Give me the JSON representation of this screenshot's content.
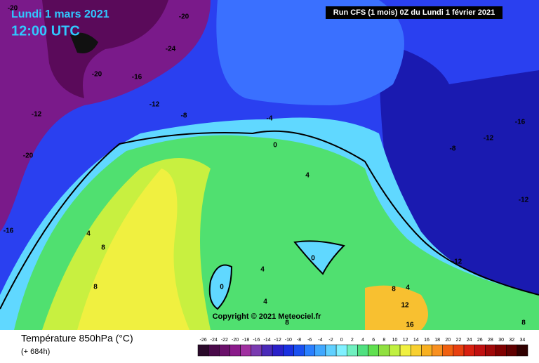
{
  "header": {
    "date": "Lundi 1 mars 2021",
    "time": "12:00 UTC",
    "run": "Run CFS (1 mois) 0Z du Lundi 1 février 2021"
  },
  "map": {
    "contour_labels": [
      -20,
      -20,
      -24,
      -20,
      -16,
      -12,
      -8,
      -4,
      -12,
      -20,
      -16,
      0,
      4,
      4,
      8,
      8,
      0,
      4,
      0,
      4,
      8,
      8,
      4,
      12,
      16,
      8,
      -12,
      -12,
      -12,
      -16,
      -8
    ],
    "copyright": "Copyright © 2021 Meteociel.fr"
  },
  "footer": {
    "title": "Température 850hPa (°C)",
    "lead": "(+ 684h)"
  },
  "scale": {
    "values": [
      -26,
      -24,
      -22,
      -20,
      -18,
      -16,
      -14,
      -12,
      -10,
      -8,
      -6,
      -4,
      -2,
      0,
      2,
      4,
      6,
      8,
      10,
      12,
      14,
      16,
      18,
      20,
      22,
      24,
      26,
      28,
      30,
      32,
      34
    ],
    "colors": [
      "#2a0a2a",
      "#4a0a4a",
      "#6a106a",
      "#8a1a8a",
      "#a030a0",
      "#7a3ab0",
      "#4a2ab8",
      "#2a20c8",
      "#1a30e0",
      "#1a50f0",
      "#2a80ff",
      "#40a8ff",
      "#60d0ff",
      "#80f0ff",
      "#70f0c0",
      "#50e080",
      "#60e050",
      "#90e040",
      "#c0f040",
      "#f0f040",
      "#f8d030",
      "#f8b020",
      "#f89020",
      "#f06010",
      "#e84010",
      "#d82010",
      "#c01010",
      "#a00808",
      "#800000",
      "#600000",
      "#300000"
    ]
  }
}
